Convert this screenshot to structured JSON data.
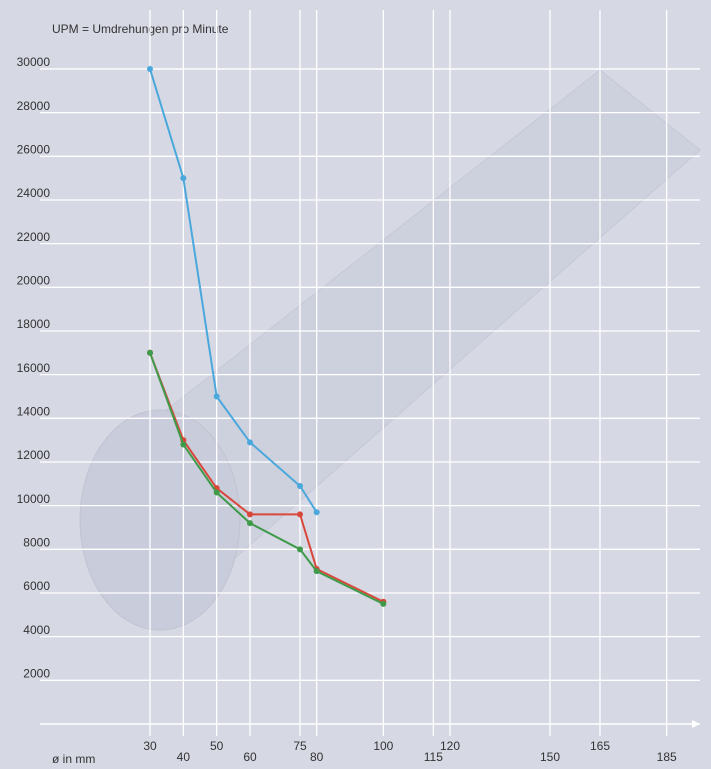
{
  "chart_data": {
    "type": "line",
    "title": "UPM = Umdrehungen pro Minute",
    "x_label": "ø in mm",
    "series": [
      {
        "color": "#4aa8dc",
        "x": [
          30,
          40,
          50,
          60,
          75,
          80
        ],
        "values": [
          30000,
          25000,
          15000,
          12900,
          10900,
          9700
        ]
      },
      {
        "color": "#d9473a",
        "x": [
          30,
          40,
          50,
          60,
          75,
          80,
          100
        ],
        "values": [
          17000,
          13000,
          10800,
          9600,
          9600,
          7100,
          5600
        ]
      },
      {
        "color": "#3f9a4a",
        "x": [
          30,
          40,
          50,
          60,
          75,
          80,
          100
        ],
        "values": [
          17000,
          12800,
          10600,
          9200,
          8000,
          7000,
          5500
        ]
      }
    ],
    "xlim": [
      0,
      195
    ],
    "xticks": [
      30,
      40,
      50,
      60,
      75,
      80,
      100,
      115,
      120,
      150,
      165,
      185
    ],
    "ylim": [
      0,
      32700
    ],
    "yticks": [
      2000,
      4000,
      6000,
      8000,
      10000,
      12000,
      14000,
      16000,
      18000,
      20000,
      22000,
      24000,
      26000,
      28000,
      30000
    ],
    "grid": true
  }
}
